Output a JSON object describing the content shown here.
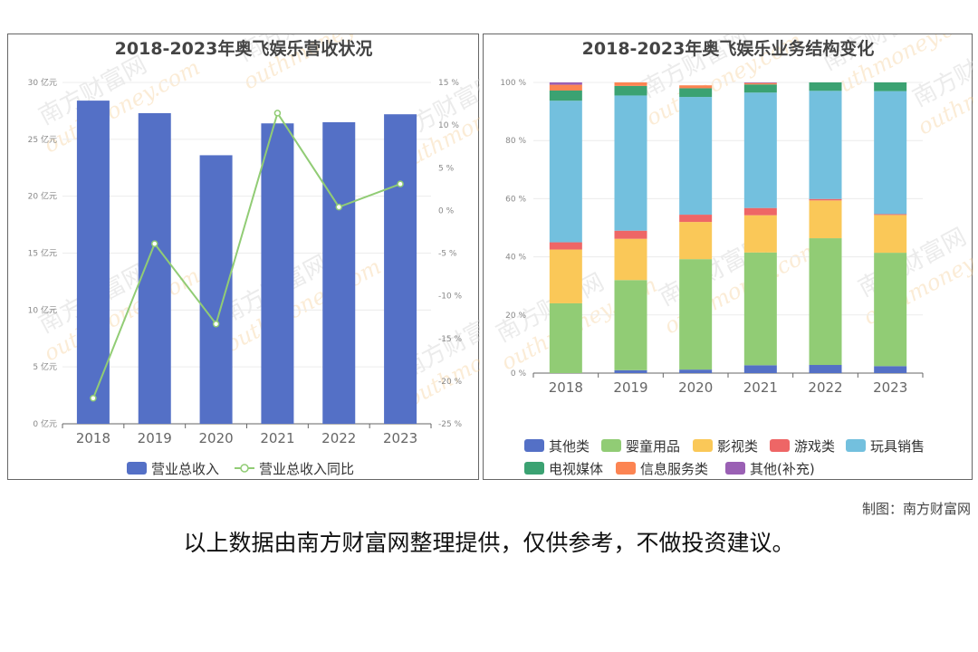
{
  "charts": {
    "left_title": "2018-2023年奥飞娱乐营收状况",
    "right_title": "2018-2023年奥飞娱乐业务结构变化"
  },
  "credit": "制图：南方财富网",
  "footer_note": "以上数据由南方财富网整理提供，仅供参考，不做投资建议。",
  "watermark": {
    "cn": "南方财富网",
    "en": "outhmoney.com"
  },
  "chart_data": [
    {
      "type": "bar",
      "title": "2018-2023年奥飞娱乐营收状况",
      "categories": [
        "2018",
        "2019",
        "2020",
        "2021",
        "2022",
        "2023"
      ],
      "y_unit": "亿元",
      "ylim": [
        0,
        30
      ],
      "yticks": [
        "0 亿元",
        "5 亿元",
        "10 亿元",
        "15 亿元",
        "20 亿元",
        "25 亿元",
        "30 亿元"
      ],
      "y2lim": [
        -25,
        15
      ],
      "y2ticks": [
        "-25 %",
        "-20 %",
        "-15 %",
        "-10 %",
        "-5 %",
        "0 %",
        "5 %",
        "10 %",
        "15 %"
      ],
      "series": [
        {
          "name": "营业总收入",
          "type": "bar",
          "color": "#5470c6",
          "values": [
            28.4,
            27.3,
            23.6,
            26.4,
            26.5,
            27.2
          ]
        },
        {
          "name": "营业总收入同比",
          "type": "line",
          "color": "#91cc75",
          "values": [
            -22.0,
            -3.9,
            -13.3,
            11.4,
            0.4,
            3.1
          ]
        }
      ],
      "legend": "bottom"
    },
    {
      "type": "bar",
      "stacked": true,
      "title": "2018-2023年奥飞娱乐业务结构变化",
      "categories": [
        "2018",
        "2019",
        "2020",
        "2021",
        "2022",
        "2023"
      ],
      "ylim": [
        0,
        100
      ],
      "yticks": [
        "0 %",
        "20 %",
        "40 %",
        "60 %",
        "80 %",
        "100 %"
      ],
      "series": [
        {
          "name": "其他类",
          "color": "#5470c6",
          "values": [
            0.0,
            1.0,
            1.2,
            2.7,
            2.8,
            2.4
          ]
        },
        {
          "name": "婴童用品",
          "color": "#91cc75",
          "values": [
            24.0,
            31.0,
            38.0,
            38.8,
            43.6,
            39.0
          ]
        },
        {
          "name": "影视类",
          "color": "#fac858",
          "values": [
            18.5,
            14.2,
            12.8,
            12.8,
            13.0,
            13.0
          ]
        },
        {
          "name": "游戏类",
          "color": "#ee6666",
          "values": [
            2.5,
            2.8,
            2.5,
            2.5,
            0.5,
            0.3
          ]
        },
        {
          "name": "玩具销售",
          "color": "#73c0de",
          "values": [
            48.7,
            46.5,
            40.5,
            39.7,
            37.2,
            42.3
          ]
        },
        {
          "name": "电视媒体",
          "color": "#3ba272",
          "values": [
            3.5,
            3.3,
            3.0,
            2.8,
            2.9,
            3.0
          ]
        },
        {
          "name": "信息服务类",
          "color": "#fc8452",
          "values": [
            2.0,
            1.2,
            1.0,
            0.5,
            0.0,
            0.0
          ]
        },
        {
          "name": "其他(补充)",
          "color": "#9a60b4",
          "values": [
            0.8,
            0.0,
            0.0,
            0.2,
            0.0,
            0.0
          ]
        }
      ],
      "legend": "bottom"
    }
  ]
}
